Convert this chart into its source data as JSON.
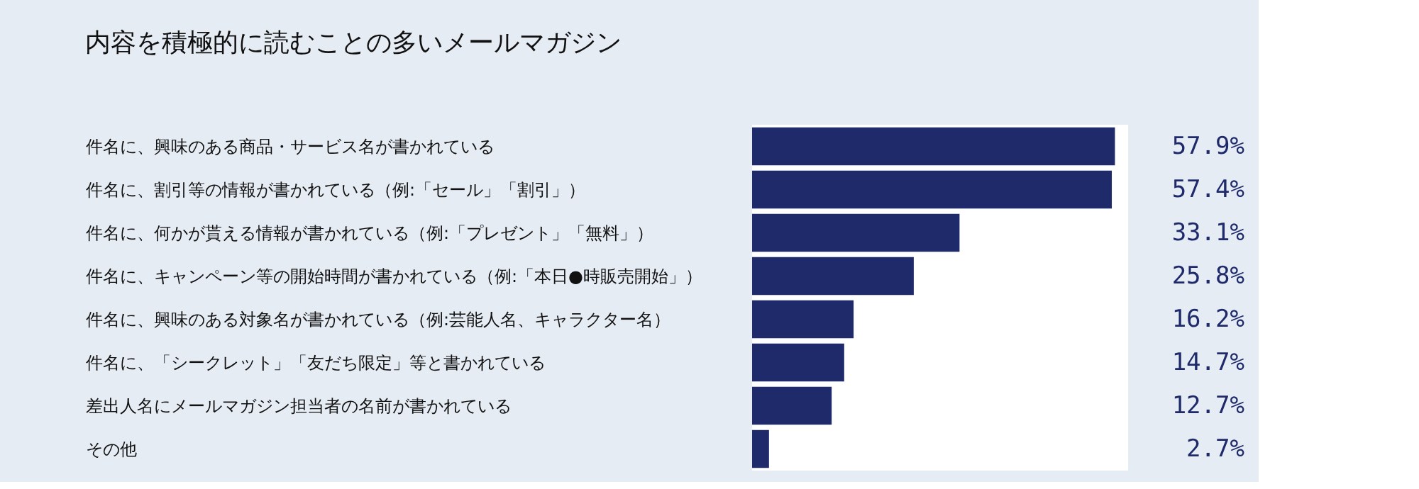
{
  "chart_data": {
    "type": "bar",
    "orientation": "horizontal",
    "title": "内容を積極的に読むことの多いメールマガジン",
    "categories": [
      "件名に、興味のある商品・サービス名が書かれている",
      "件名に、割引等の情報が書かれている（例:「セール」「割引」）",
      "件名に、何かが貰える情報が書かれている（例:「プレゼント」「無料」）",
      "件名に、キャンペーン等の開始時間が書かれている（例:「本日●時販売開始」）",
      "件名に、興味のある対象名が書かれている（例:芸能人名、キャラクター名）",
      "件名に、「シークレット」「友だち限定」等と書かれている",
      "差出人名にメールマガジン担当者の名前が書かれている",
      "その他"
    ],
    "values": [
      57.9,
      57.4,
      33.1,
      25.8,
      16.2,
      14.7,
      12.7,
      2.7
    ],
    "value_labels": [
      "57.9%",
      "57.4%",
      "33.1%",
      "25.8%",
      "16.2%",
      "14.7%",
      "12.7%",
      "2.7%"
    ],
    "color": "#1f2a6b"
  }
}
